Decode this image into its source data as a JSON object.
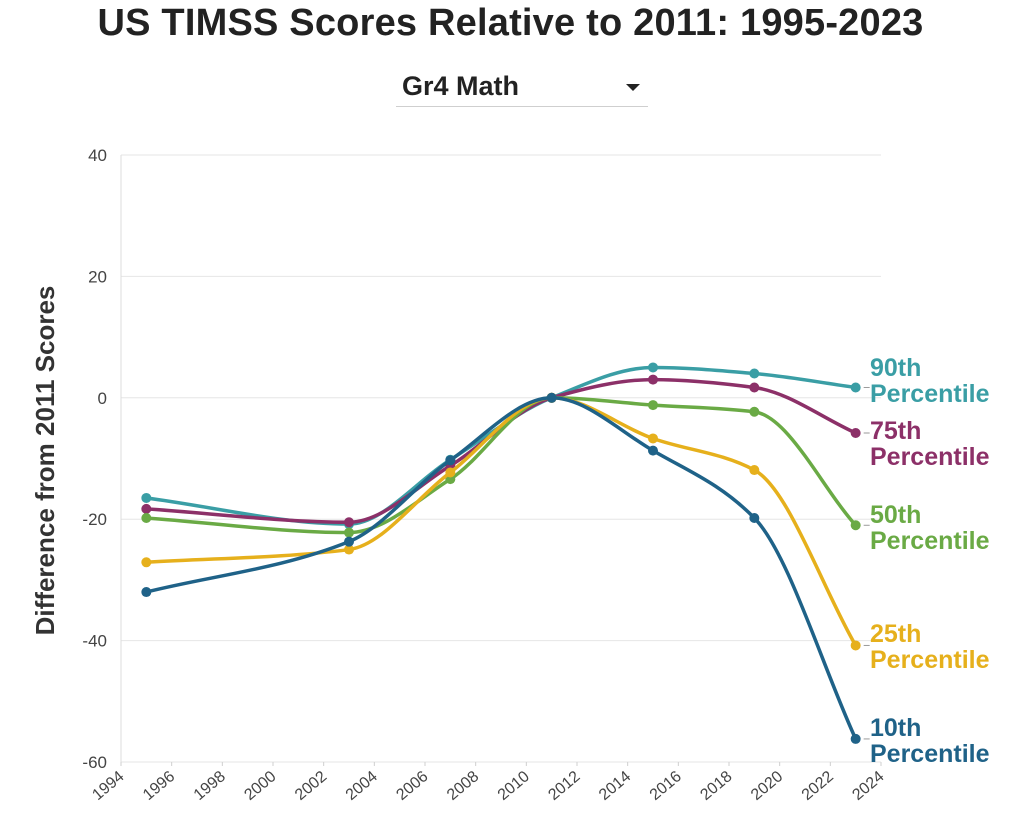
{
  "title": "US TIMSS Scores Relative to 2011: 1995-2023",
  "selector": {
    "selected": "Gr4 Math"
  },
  "chart_data": {
    "type": "line",
    "ylabel": "Difference from 2011 Scores",
    "xlabel": "",
    "xlim": [
      1994,
      2024
    ],
    "ylim": [
      -60,
      40
    ],
    "x_ticks": [
      "1994",
      "1996",
      "1998",
      "2000",
      "2002",
      "2004",
      "2006",
      "2008",
      "2010",
      "2012",
      "2014",
      "2016",
      "2018",
      "2020",
      "2022",
      "2024"
    ],
    "y_ticks": [
      "40",
      "20",
      "0",
      "-20",
      "-40",
      "-60"
    ],
    "grid": true,
    "x": [
      1995,
      2003,
      2007,
      2011,
      2015,
      2019,
      2023
    ],
    "series": [
      {
        "name": "90th Percentile",
        "label_lines": [
          "90th",
          "Percentile"
        ],
        "color": "#3a9ea5",
        "values": [
          -16.5,
          -20.8,
          -10.2,
          0,
          5,
          4,
          1.7
        ]
      },
      {
        "name": "75th Percentile",
        "label_lines": [
          "75th",
          "Percentile"
        ],
        "color": "#8c3068",
        "values": [
          -18.3,
          -20.5,
          -11.2,
          0,
          3,
          1.7,
          -5.8
        ]
      },
      {
        "name": "50th Percentile",
        "label_lines": [
          "50th",
          "Percentile"
        ],
        "color": "#6aaa45",
        "values": [
          -19.8,
          -22.2,
          -13.4,
          0,
          -1.2,
          -2.3,
          -21
        ]
      },
      {
        "name": "25th Percentile",
        "label_lines": [
          "25th",
          "Percentile"
        ],
        "color": "#e6b01c",
        "values": [
          -27.1,
          -25,
          -12.3,
          0,
          -6.7,
          -11.9,
          -40.8
        ]
      },
      {
        "name": "10th Percentile",
        "label_lines": [
          "10th",
          "Percentile"
        ],
        "color": "#1f6288",
        "values": [
          -32,
          -23.7,
          -10.3,
          0,
          -8.7,
          -19.8,
          -56.2
        ]
      }
    ]
  }
}
